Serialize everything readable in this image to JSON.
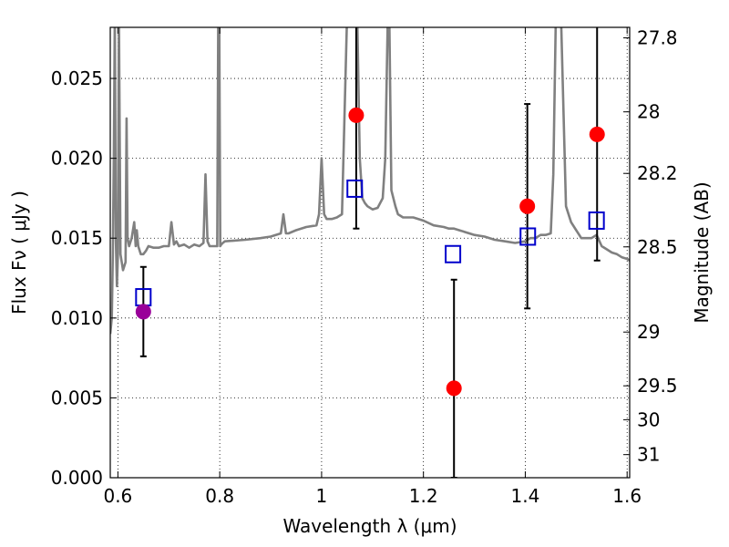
{
  "chart_data": {
    "type": "scatter",
    "xlabel": "Wavelength  λ (μm)",
    "ylabel": "Flux  Fν  ( μJy )",
    "y2label": "Magnitude (AB)",
    "xlim": [
      0.585,
      1.605
    ],
    "ylim": [
      0.0,
      0.0282
    ],
    "grid": true,
    "x_ticks": [
      {
        "value": 0.6,
        "label": "0.6"
      },
      {
        "value": 0.8,
        "label": "0.8"
      },
      {
        "value": 1.0,
        "label": "1"
      },
      {
        "value": 1.2,
        "label": "1.2"
      },
      {
        "value": 1.4,
        "label": "1.4"
      },
      {
        "value": 1.6,
        "label": "1.6"
      }
    ],
    "y_ticks": [
      {
        "value": 0.0,
        "label": "0.000"
      },
      {
        "value": 0.005,
        "label": "0.005"
      },
      {
        "value": 0.01,
        "label": "0.010"
      },
      {
        "value": 0.015,
        "label": "0.015"
      },
      {
        "value": 0.02,
        "label": "0.020"
      },
      {
        "value": 0.025,
        "label": "0.025"
      }
    ],
    "y2_ticks": [
      {
        "label": "27.8",
        "mag": 27.8
      },
      {
        "label": "28",
        "mag": 28.0
      },
      {
        "label": "28.2",
        "mag": 28.2
      },
      {
        "label": "28.5",
        "mag": 28.5
      },
      {
        "label": "29",
        "mag": 29.0
      },
      {
        "label": "29.5",
        "mag": 29.5
      },
      {
        "label": "30",
        "mag": 30.0
      },
      {
        "label": "31",
        "mag": 31.0
      }
    ],
    "model_spectrum": {
      "color": "#808080",
      "x": [
        0.585,
        0.588,
        0.59,
        0.592,
        0.594,
        0.596,
        0.598,
        0.6,
        0.602,
        0.605,
        0.61,
        0.615,
        0.617,
        0.619,
        0.622,
        0.627,
        0.632,
        0.635,
        0.637,
        0.64,
        0.645,
        0.65,
        0.655,
        0.66,
        0.67,
        0.68,
        0.69,
        0.7,
        0.705,
        0.71,
        0.715,
        0.72,
        0.73,
        0.74,
        0.75,
        0.76,
        0.768,
        0.772,
        0.776,
        0.78,
        0.79,
        0.795,
        0.797,
        0.799,
        0.801,
        0.803,
        0.806,
        0.81,
        0.85,
        0.88,
        0.9,
        0.92,
        0.925,
        0.93,
        0.935,
        0.95,
        0.97,
        0.99,
        0.995,
        1.0,
        1.005,
        1.01,
        1.02,
        1.03,
        1.04,
        1.05,
        1.055,
        1.06,
        1.062,
        1.064,
        1.066,
        1.07,
        1.075,
        1.078,
        1.08,
        1.085,
        1.09,
        1.1,
        1.11,
        1.12,
        1.125,
        1.13,
        1.133,
        1.137,
        1.145,
        1.15,
        1.16,
        1.18,
        1.2,
        1.22,
        1.24,
        1.25,
        1.26,
        1.27,
        1.28,
        1.3,
        1.32,
        1.34,
        1.36,
        1.38,
        1.4,
        1.41,
        1.42,
        1.43,
        1.44,
        1.45,
        1.455,
        1.46,
        1.465,
        1.47,
        1.48,
        1.49,
        1.5,
        1.51,
        1.52,
        1.53,
        1.54,
        1.55,
        1.56,
        1.57,
        1.58,
        1.59,
        1.6,
        1.605
      ],
      "y": [
        0.009,
        0.01,
        0.014,
        0.02,
        0.029,
        0.015,
        0.012,
        0.014,
        0.029,
        0.014,
        0.013,
        0.0135,
        0.0225,
        0.015,
        0.0145,
        0.015,
        0.016,
        0.0145,
        0.0155,
        0.0145,
        0.014,
        0.014,
        0.0142,
        0.0145,
        0.0144,
        0.0144,
        0.0145,
        0.0145,
        0.016,
        0.0146,
        0.0148,
        0.0145,
        0.0146,
        0.0144,
        0.0146,
        0.0145,
        0.0147,
        0.019,
        0.0148,
        0.0145,
        0.0145,
        0.0145,
        0.029,
        0.029,
        0.0145,
        0.0146,
        0.0147,
        0.0148,
        0.0149,
        0.015,
        0.0151,
        0.0153,
        0.0165,
        0.0153,
        0.0153,
        0.0155,
        0.0157,
        0.0158,
        0.0165,
        0.02,
        0.0165,
        0.0162,
        0.0162,
        0.0163,
        0.0165,
        0.029,
        0.029,
        0.029,
        0.029,
        0.029,
        0.029,
        0.029,
        0.02,
        0.0185,
        0.0175,
        0.0172,
        0.017,
        0.0168,
        0.0169,
        0.0175,
        0.02,
        0.029,
        0.029,
        0.018,
        0.017,
        0.0165,
        0.0163,
        0.0163,
        0.0161,
        0.0158,
        0.0157,
        0.0156,
        0.0156,
        0.0155,
        0.0154,
        0.0152,
        0.0151,
        0.0149,
        0.0148,
        0.0147,
        0.0148,
        0.015,
        0.015,
        0.0152,
        0.0152,
        0.0153,
        0.019,
        0.029,
        0.029,
        0.029,
        0.017,
        0.016,
        0.0155,
        0.015,
        0.015,
        0.015,
        0.0152,
        0.0145,
        0.0143,
        0.0141,
        0.014,
        0.0138,
        0.0137,
        0.0136
      ]
    },
    "series": [
      {
        "marker": "open-square",
        "color": "#0000cc",
        "points": [
          {
            "x": 0.65,
            "y": 0.0113
          },
          {
            "x": 1.065,
            "y": 0.0181
          },
          {
            "x": 1.258,
            "y": 0.014
          },
          {
            "x": 1.405,
            "y": 0.0151
          },
          {
            "x": 1.54,
            "y": 0.0161
          }
        ]
      },
      {
        "marker": "filled-circle",
        "color": "#ff0000",
        "points": [
          {
            "x": 1.068,
            "y": 0.0227,
            "ylow": 0.0156,
            "yhigh": 0.03
          },
          {
            "x": 1.26,
            "y": 0.0056,
            "ylow": 0.0,
            "yhigh": 0.0124
          },
          {
            "x": 1.404,
            "y": 0.017,
            "ylow": 0.0106,
            "yhigh": 0.0234
          },
          {
            "x": 1.541,
            "y": 0.0215,
            "ylow": 0.0136,
            "yhigh": 0.03
          }
        ]
      },
      {
        "marker": "filled-circle",
        "color": "#990099",
        "points": [
          {
            "x": 0.65,
            "y": 0.0104,
            "ylow": 0.0076,
            "yhigh": 0.0132
          }
        ]
      }
    ],
    "colors": {
      "spectrum": "#808080",
      "square": "#0000cc",
      "red_point": "#ff0000",
      "purple_point": "#990099",
      "errorbar": "#000000"
    }
  }
}
